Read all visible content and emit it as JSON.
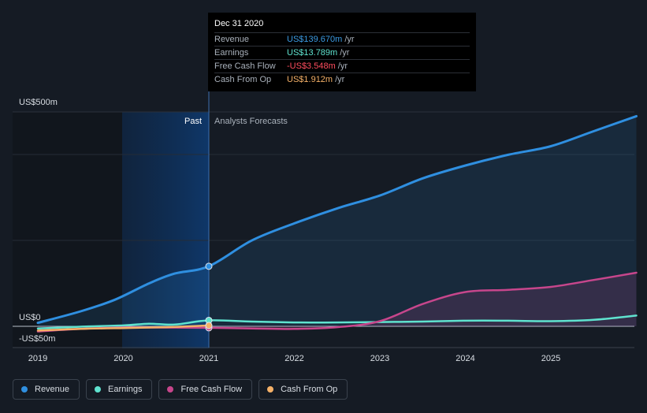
{
  "tooltip": {
    "date": "Dec 31 2020",
    "rows": [
      {
        "label": "Revenue",
        "value": "US$139.670m",
        "unit": "/yr",
        "color": "#3b9ae1"
      },
      {
        "label": "Earnings",
        "value": "US$13.789m",
        "unit": "/yr",
        "color": "#5fe3cf"
      },
      {
        "label": "Free Cash Flow",
        "value": "-US$3.548m",
        "unit": "/yr",
        "color": "#ff4d5e"
      },
      {
        "label": "Cash From Op",
        "value": "US$1.912m",
        "unit": "/yr",
        "color": "#f5b168"
      }
    ]
  },
  "regions": {
    "past": "Past",
    "forecast": "Analysts Forecasts"
  },
  "legend": [
    {
      "label": "Revenue",
      "color": "#2f8fe0"
    },
    {
      "label": "Earnings",
      "color": "#5fe3cf"
    },
    {
      "label": "Free Cash Flow",
      "color": "#c7468c"
    },
    {
      "label": "Cash From Op",
      "color": "#f5b168"
    }
  ],
  "chart_data": {
    "type": "line",
    "ylim": [
      -50,
      500
    ],
    "xlim": [
      2019,
      2026
    ],
    "y_tick_labels": [
      {
        "value": 500,
        "label": "US$500m"
      },
      {
        "value": 0,
        "label": "US$0"
      },
      {
        "value": -50,
        "label": "-US$50m"
      }
    ],
    "x_ticks": [
      2019,
      2020,
      2021,
      2022,
      2023,
      2024,
      2025
    ],
    "past_end": 2021,
    "highlight_x": 2021,
    "series": [
      {
        "name": "Revenue",
        "color": "#2f8fe0",
        "area": true,
        "x": [
          2019,
          2019.5,
          2019.9,
          2020.3,
          2020.6,
          2021,
          2021.5,
          2022,
          2022.5,
          2023,
          2023.5,
          2024,
          2024.5,
          2025,
          2025.5,
          2026
        ],
        "y": [
          8,
          35,
          62,
          100,
          123,
          140,
          200,
          240,
          275,
          305,
          345,
          375,
          400,
          420,
          455,
          490
        ]
      },
      {
        "name": "Earnings",
        "color": "#5fe3cf",
        "area": false,
        "x": [
          2019,
          2019.5,
          2020,
          2020.3,
          2020.6,
          2021,
          2021.5,
          2022,
          2022.5,
          2023,
          2023.5,
          2024,
          2024.5,
          2025,
          2025.5,
          2026
        ],
        "y": [
          -5,
          -1,
          2,
          6,
          4,
          13.8,
          11,
          9,
          9,
          10,
          11,
          13,
          13,
          12,
          15,
          25
        ]
      },
      {
        "name": "Free Cash Flow",
        "color": "#c7468c",
        "area": true,
        "x": [
          2019,
          2019.5,
          2020,
          2020.5,
          2021,
          2021.5,
          2022,
          2022.5,
          2023,
          2023.5,
          2024,
          2024.5,
          2025,
          2025.5,
          2026
        ],
        "y": [
          -12,
          -6,
          -3,
          -3,
          -3.5,
          -5,
          -6,
          -2,
          12,
          52,
          80,
          85,
          92,
          108,
          125
        ]
      },
      {
        "name": "Cash From Op",
        "color": "#f5b168",
        "area": false,
        "x": [
          2019,
          2019.5,
          2020,
          2020.5,
          2021
        ],
        "y": [
          -10,
          -6,
          -4,
          -2,
          1.9
        ]
      }
    ]
  }
}
